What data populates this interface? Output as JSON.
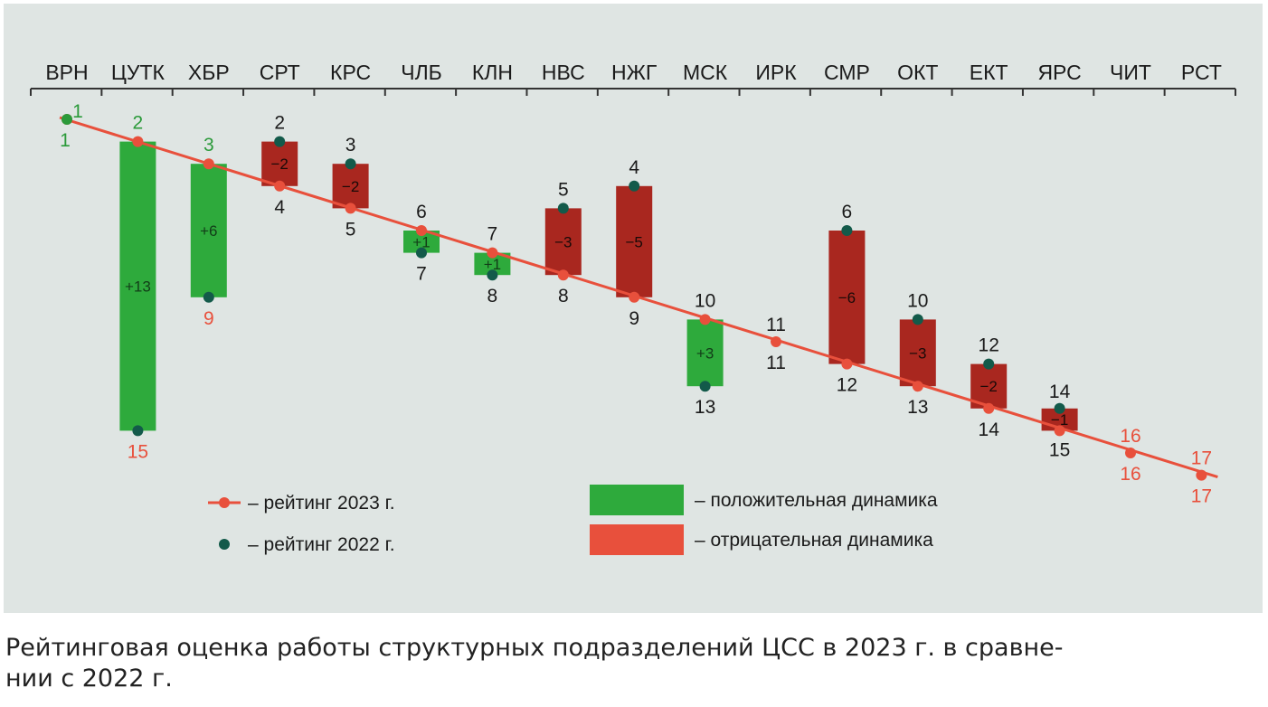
{
  "chart_data": {
    "type": "waterfall-ranking",
    "categories": [
      "ВРН",
      "ЦУТК",
      "ХБР",
      "СРТ",
      "КРС",
      "ЧЛБ",
      "КЛН",
      "НВС",
      "НЖГ",
      "МСК",
      "ИРК",
      "СМР",
      "ОКТ",
      "ЕКТ",
      "ЯРС",
      "ЧИТ",
      "РСТ"
    ],
    "rating_2023": [
      1,
      2,
      3,
      4,
      5,
      6,
      7,
      8,
      9,
      10,
      11,
      12,
      13,
      14,
      15,
      16,
      17
    ],
    "rating_2022": [
      1,
      15,
      9,
      2,
      3,
      7,
      8,
      5,
      4,
      13,
      11,
      6,
      10,
      12,
      14,
      16,
      17
    ],
    "change_labels": [
      "",
      "+13",
      "+6",
      "−2",
      "−2",
      "+1",
      "+1",
      "−3",
      "−5",
      "+3",
      "",
      "−6",
      "−3",
      "−2",
      "−1",
      "",
      ""
    ],
    "colors": {
      "positive": "#2eaa3c",
      "negative": "#a9271f",
      "line_2023": "#e8503c",
      "marker_2022": "#135a4a",
      "label_green": "#2b9a3a",
      "label_red": "#e8503c",
      "label_dark": "#1a1a1a"
    }
  },
  "legend": {
    "rating_2023": "– рейтинг 2023 г.",
    "rating_2022": "– рейтинг 2022 г.",
    "positive": "– положительная динамика",
    "negative": "– отрицательная динамика"
  },
  "caption": {
    "line1": "Рейтинговая оценка работы структурных подразделений ЦСС в 2023 г. в сравне-",
    "line2": "нии с 2022 г."
  }
}
